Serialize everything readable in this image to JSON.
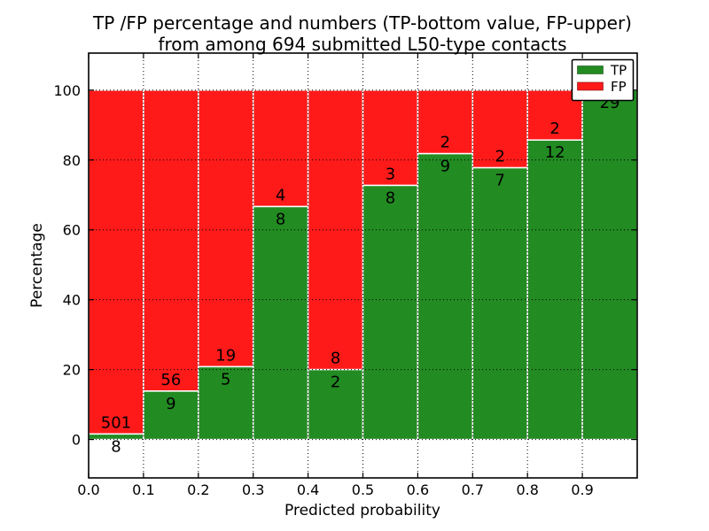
{
  "figure": {
    "title_line1": "TP /FP percentage and numbers (TP-bottom value, FP-upper)",
    "title_line2": "from among 694 submitted L50-type contacts",
    "background": "#ffffff"
  },
  "chart_data": {
    "type": "bar",
    "subtype": "stacked-percentage",
    "title": "TP /FP percentage and numbers (TP-bottom value, FP-upper)\nfrom among 694 submitted L50-type contacts",
    "xlabel": "Predicted probability",
    "ylabel": "Percentage",
    "total_contacts": 694,
    "bin_width": 0.1,
    "bin_starts": [
      0.0,
      0.1,
      0.2,
      0.3,
      0.4,
      0.5,
      0.6,
      0.7,
      0.8,
      0.9
    ],
    "series": [
      {
        "name": "TP",
        "color": "#228b22",
        "counts": [
          8,
          9,
          5,
          8,
          2,
          8,
          9,
          7,
          12,
          29
        ],
        "percent": [
          1.57,
          13.85,
          20.83,
          66.67,
          20.0,
          72.73,
          81.82,
          77.78,
          85.71,
          100.0
        ]
      },
      {
        "name": "FP",
        "color": "#ff1a1a",
        "counts": [
          501,
          56,
          19,
          4,
          8,
          3,
          2,
          2,
          2,
          0
        ],
        "percent": [
          98.43,
          86.15,
          79.17,
          33.33,
          80.0,
          27.27,
          18.18,
          22.22,
          14.29,
          0.0
        ]
      }
    ],
    "annotation_rule": "TP count printed below segment boundary, FP count printed above it",
    "xlim": [
      0.0,
      1.0
    ],
    "ylim": [
      -11,
      110.6
    ],
    "xticks": {
      "values": [
        0.0,
        0.1,
        0.2,
        0.3,
        0.4,
        0.5,
        0.6,
        0.7,
        0.8,
        0.9
      ],
      "labels": [
        "0.0",
        "0.1",
        "0.2",
        "0.3",
        "0.4",
        "0.5",
        "0.6",
        "0.7",
        "0.8",
        "0.9"
      ]
    },
    "yticks": {
      "values": [
        0,
        20,
        40,
        60,
        80,
        100
      ],
      "labels": [
        "0",
        "20",
        "40",
        "60",
        "80",
        "100"
      ]
    },
    "grid": {
      "style": "dotted",
      "color": "#000000",
      "on_top": true
    },
    "bar_edge_color": "#ffffff",
    "legend": {
      "position": "upper right",
      "entries": [
        {
          "label": "TP",
          "color": "#228b22"
        },
        {
          "label": "FP",
          "color": "#ff1a1a"
        }
      ]
    }
  }
}
